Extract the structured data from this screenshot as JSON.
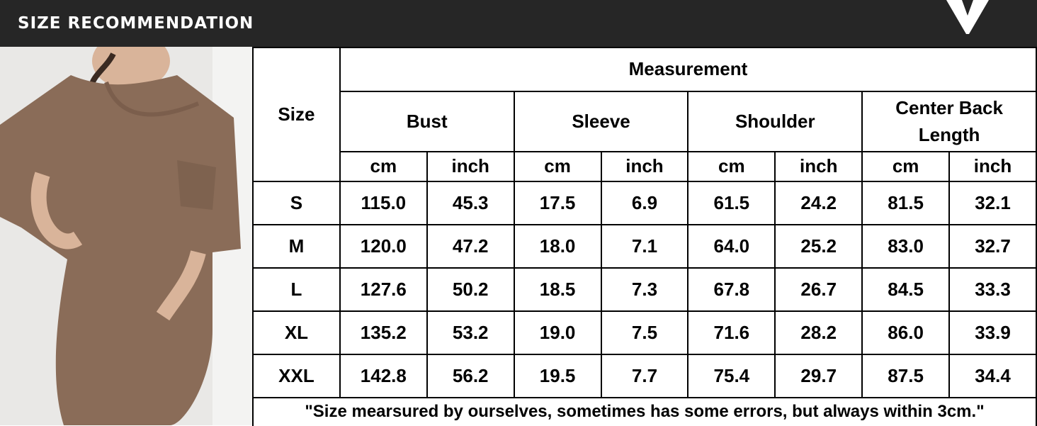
{
  "header": {
    "title": "SIZE RECOMMENDATION"
  },
  "table": {
    "size_header": "Size",
    "group_header": "Measurement",
    "measures": [
      "Bust",
      "Sleeve",
      "Shoulder",
      "Center Back Length"
    ],
    "units": [
      "cm",
      "inch",
      "cm",
      "inch",
      "cm",
      "inch",
      "cm",
      "inch"
    ],
    "rows": [
      [
        "S",
        "115.0",
        "45.3",
        "17.5",
        "6.9",
        "61.5",
        "24.2",
        "81.5",
        "32.1"
      ],
      [
        "M",
        "120.0",
        "47.2",
        "18.0",
        "7.1",
        "64.0",
        "25.2",
        "83.0",
        "32.7"
      ],
      [
        "L",
        "127.6",
        "50.2",
        "18.5",
        "7.3",
        "67.8",
        "26.7",
        "84.5",
        "33.3"
      ],
      [
        "XL",
        "135.2",
        "53.2",
        "19.0",
        "7.5",
        "71.6",
        "28.2",
        "86.0",
        "33.9"
      ],
      [
        "XXL",
        "142.8",
        "56.2",
        "19.5",
        "7.7",
        "75.4",
        "29.7",
        "87.5",
        "34.4"
      ]
    ],
    "note": "\"Size mearsured by ourselves, sometimes has some errors, but always within 3cm.\""
  }
}
